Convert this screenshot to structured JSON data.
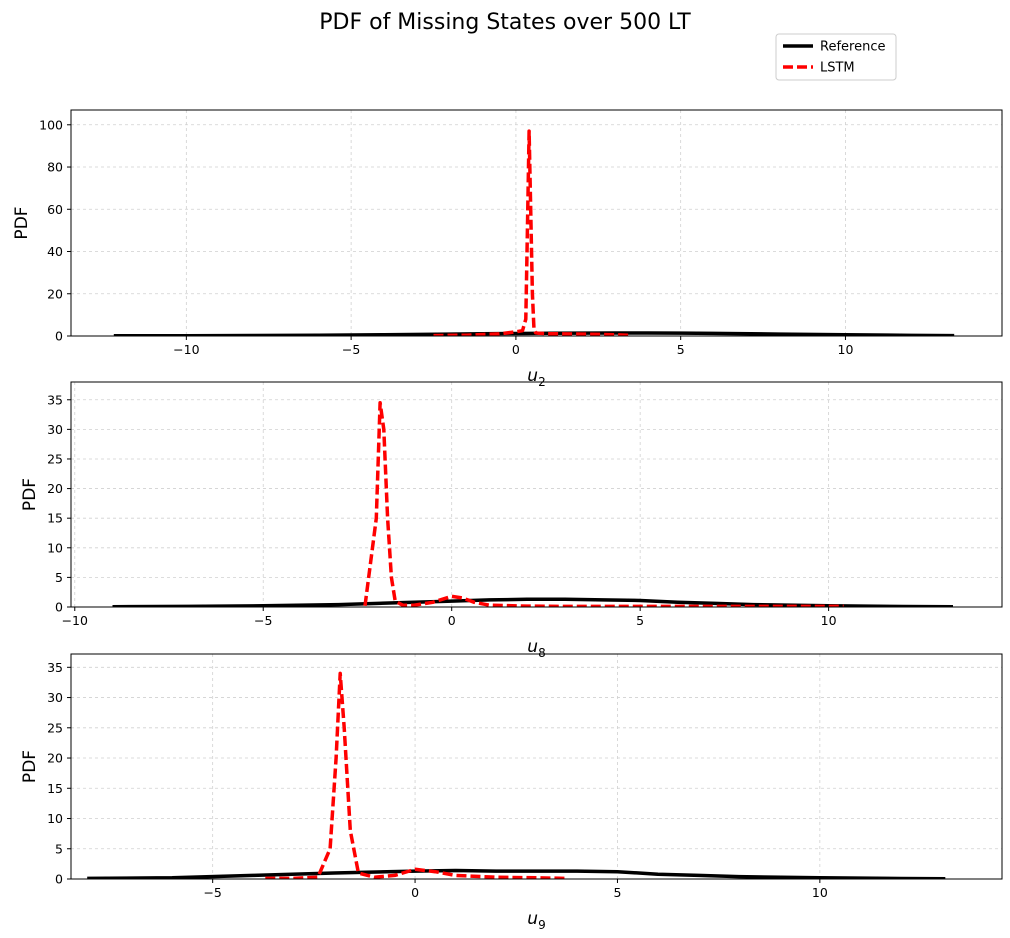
{
  "figure": {
    "title": "PDF of Missing States over 500 LT"
  },
  "legend": {
    "placement": "top-right",
    "entries": [
      {
        "label": "Reference",
        "color": "#000000",
        "dash": "solid"
      },
      {
        "label": "LSTM",
        "color": "#ff0000",
        "dash": "dashed"
      }
    ]
  },
  "chart_data": [
    {
      "type": "line",
      "xlabel_var": "u",
      "xlabel_sub": "2",
      "ylabel": "PDF",
      "xlim": [
        -13.5,
        14.75
      ],
      "ylim": [
        0,
        107
      ],
      "xticks": [
        -10,
        -5,
        0,
        5,
        10
      ],
      "xtick_labels": [
        "−10",
        "−5",
        "0",
        "5",
        "10"
      ],
      "yticks": [
        0,
        20,
        40,
        60,
        80,
        100
      ],
      "ytick_labels": [
        "0",
        "20",
        "40",
        "60",
        "80",
        "100"
      ],
      "grid": true,
      "series": [
        {
          "name": "Reference",
          "x": [
            -12.2,
            -10,
            -8,
            -6,
            -4,
            -2,
            -1,
            0,
            1,
            2,
            3,
            4,
            5,
            6,
            8,
            10,
            12,
            13.3
          ],
          "y": [
            0.1,
            0.15,
            0.25,
            0.4,
            0.6,
            0.9,
            1.1,
            1.2,
            1.3,
            1.35,
            1.4,
            1.4,
            1.35,
            1.25,
            0.9,
            0.6,
            0.3,
            0.2
          ]
        },
        {
          "name": "LSTM",
          "x": [
            -2.5,
            -1.5,
            -1,
            -0.5,
            0,
            0.2,
            0.3,
            0.35,
            0.4,
            0.45,
            0.5,
            0.55,
            0.6,
            0.7,
            1,
            2,
            3,
            3.5
          ],
          "y": [
            0.2,
            0.4,
            0.7,
            1.0,
            2.0,
            2.5,
            8,
            50,
            97,
            60,
            20,
            3,
            1.5,
            1.3,
            1.1,
            0.9,
            0.6,
            0.3
          ]
        }
      ]
    },
    {
      "type": "line",
      "xlabel_var": "u",
      "xlabel_sub": "8",
      "ylabel": "PDF",
      "xlim": [
        -10.1,
        14.6
      ],
      "ylim": [
        0,
        38
      ],
      "xticks": [
        -10,
        -5,
        0,
        5,
        10
      ],
      "xtick_labels": [
        "−10",
        "−5",
        "0",
        "5",
        "10"
      ],
      "yticks": [
        0,
        5,
        10,
        15,
        20,
        25,
        30,
        35
      ],
      "ytick_labels": [
        "0",
        "5",
        "10",
        "15",
        "20",
        "25",
        "30",
        "35"
      ],
      "grid": true,
      "series": [
        {
          "name": "Reference",
          "x": [
            -9.0,
            -7,
            -5,
            -3,
            -1,
            0,
            1,
            2,
            3,
            4,
            5,
            6,
            7,
            8,
            10,
            12,
            13.3
          ],
          "y": [
            0.05,
            0.1,
            0.2,
            0.4,
            0.8,
            1.0,
            1.2,
            1.3,
            1.3,
            1.2,
            1.1,
            0.8,
            0.6,
            0.4,
            0.2,
            0.08,
            0.03
          ]
        },
        {
          "name": "LSTM",
          "x": [
            -2.3,
            -2.0,
            -1.9,
            -1.8,
            -1.7,
            -1.6,
            -1.5,
            -1.3,
            -1.0,
            -0.5,
            0,
            0.3,
            0.6,
            1,
            2,
            3,
            5,
            7,
            9,
            10.4
          ],
          "y": [
            0.2,
            15,
            34.5,
            30,
            15,
            5,
            1,
            0.3,
            0.3,
            0.8,
            1.8,
            1.5,
            0.8,
            0.3,
            0.15,
            0.1,
            0.1,
            0.1,
            0.1,
            0.1
          ]
        }
      ]
    },
    {
      "type": "line",
      "xlabel_var": "u",
      "xlabel_sub": "9",
      "ylabel": "PDF",
      "xlim": [
        -8.5,
        14.5
      ],
      "ylim": [
        0,
        37.2
      ],
      "xticks": [
        -5,
        0,
        5,
        10
      ],
      "xtick_labels": [
        "−5",
        "0",
        "5",
        "10"
      ],
      "yticks": [
        0,
        5,
        10,
        15,
        20,
        25,
        30,
        35
      ],
      "ytick_labels": [
        "0",
        "5",
        "10",
        "15",
        "20",
        "25",
        "30",
        "35"
      ],
      "grid": true,
      "series": [
        {
          "name": "Reference",
          "x": [
            -8.1,
            -6,
            -4,
            -2,
            0,
            1,
            2,
            3,
            4,
            5,
            6,
            7,
            8,
            10,
            12,
            13.1
          ],
          "y": [
            0.1,
            0.2,
            0.6,
            1.0,
            1.3,
            1.4,
            1.3,
            1.3,
            1.3,
            1.2,
            0.8,
            0.6,
            0.4,
            0.2,
            0.08,
            0.04
          ]
        },
        {
          "name": "LSTM",
          "x": [
            -3.7,
            -3.0,
            -2.4,
            -2.1,
            -1.95,
            -1.85,
            -1.75,
            -1.6,
            -1.4,
            -1.0,
            -0.5,
            0,
            0.5,
            1,
            2,
            3,
            3.7
          ],
          "y": [
            0.1,
            0.1,
            0.3,
            5,
            20,
            34,
            25,
            8,
            1,
            0.3,
            0.6,
            1.6,
            1.2,
            0.6,
            0.3,
            0.2,
            0.1
          ]
        }
      ]
    }
  ]
}
